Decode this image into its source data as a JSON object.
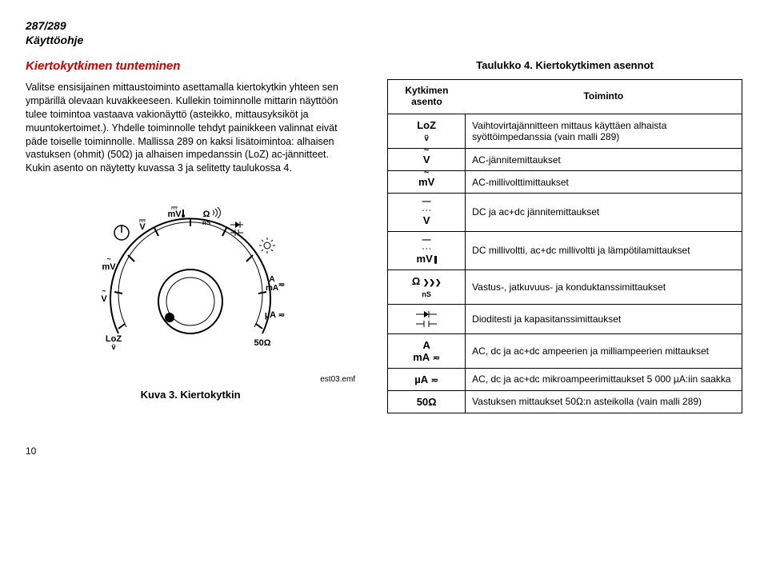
{
  "header": {
    "model": "287/289",
    "subtitle": "Käyttöohje"
  },
  "left": {
    "section_title": "Kiertokytkimen tunteminen",
    "paragraph": "Valitse ensisijainen mittaustoiminto asettamalla kiertokytkin yhteen sen ympärillä olevaan kuvakkeeseen. Kullekin toiminnolle mittarin näyttöön tulee toimintoa vastaava vakionäyttö (asteikko, mittausyksiköt ja muuntokertoimet.). Yhdelle toiminnolle tehdyt painikkeen valinnat eivät päde toiselle toiminnolle. Mallissa 289 on kaksi lisätoimintoa: alhaisen vastuksen (ohmit) (50Ω) ja alhaisen impedanssin (LoZ) ac-jännitteet. Kukin asento on näytetty kuvassa 3 ja selitetty taulukossa 4.",
    "figure_caption": "Kuva 3. Kiertokytkin",
    "emf": "est03.emf",
    "dial": {
      "labels_left": [
        "V̄",
        "m̃V",
        "Ṽ",
        "LoZ"
      ],
      "labels_top": [
        "mV⇂",
        "Ω ns",
        "⊣⊢"
      ],
      "labels_right": [
        "☀",
        "A mA≂",
        "µA≂",
        "50Ω"
      ],
      "stroke": "#000",
      "fill": "#fff",
      "radius": 90
    }
  },
  "right": {
    "table_title": "Taulukko 4. Kiertokytkimen asennot",
    "col1_header": "Kytkimen asento",
    "col2_header": "Toiminto",
    "rows": [
      {
        "sym": "LoZ",
        "sub": "ṽ",
        "desc": "Vaihtovirtajännitteen mittaus käyttäen alhaista syöttöimpedanssia (vain malli 289)"
      },
      {
        "sym": "Ṽ",
        "desc": "AC-jännitemittaukset"
      },
      {
        "sym": "m̃V",
        "desc": "AC-millivolttimittaukset"
      },
      {
        "sym": "V̄",
        "desc": "DC ja ac+dc jännitemittaukset"
      },
      {
        "sym": "mV⇂",
        "desc": "DC millivoltti, ac+dc millivoltti ja lämpötilamittaukset"
      },
      {
        "sym": "Ω ns",
        "desc": "Vastus-, jatkuvuus- ja konduktanssimittaukset"
      },
      {
        "sym": "⊣⊢",
        "desc": "Dioditesti ja kapasitanssimittaukset"
      },
      {
        "sym": "A mA≂",
        "desc": "AC, dc ja ac+dc ampeerien ja milliampeerien mittaukset"
      },
      {
        "sym": "µA≂",
        "desc": "AC, dc ja ac+dc mikroampeerimittaukset 5 000 µA:iin saakka"
      },
      {
        "sym": "50Ω",
        "desc": "Vastuksen mittaukset 50Ω:n asteikolla (vain malli 289)"
      }
    ]
  },
  "page_number": "10"
}
